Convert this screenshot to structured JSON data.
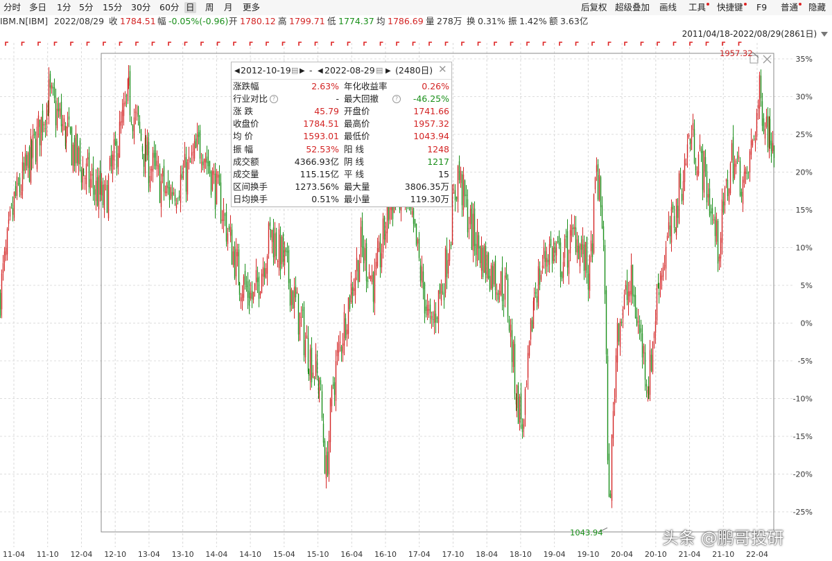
{
  "toolbar": {
    "periods": [
      "分时",
      "多日",
      "1分",
      "5分",
      "15分",
      "30分",
      "60分",
      "日",
      "周",
      "月",
      "更多"
    ],
    "active_period": "日",
    "tools": [
      "后复权",
      "超级叠加",
      "画线",
      "工具",
      "快捷键",
      "F9",
      "普通",
      "隐藏"
    ]
  },
  "quote": {
    "symbol": "IBM.N[IBM]",
    "date": "2022/08/29",
    "close_label": "收",
    "close": "1784.51",
    "change_label": "幅",
    "change": "-0.05%(-0.96)",
    "open_label": "开",
    "open": "1780.12",
    "high_label": "高",
    "high": "1799.71",
    "low_label": "低",
    "low": "1774.37",
    "avg_label": "均",
    "avg": "1786.69",
    "vol_label": "量",
    "vol": "278万",
    "turnover_label": "换",
    "turnover": "0.31%",
    "amp_label": "振",
    "amp": "1.42%",
    "amount_label": "额",
    "amount": "3.63亿"
  },
  "range_label": "2011/04/18-2022/08/29(2861日)",
  "stats_panel": {
    "start_date": "2012-10-19",
    "dash": "-",
    "end_date": "2022-08-29",
    "days": "(2480日)",
    "rows": [
      {
        "l1": "涨跌幅",
        "v1": "2.63%",
        "c1": "red",
        "l2": "年化收益率",
        "v2": "0.26%",
        "c2": "red"
      },
      {
        "l1": "行业对比",
        "v1": "-",
        "c1": "dark",
        "l2": "最大回撤",
        "v2": "-46.25%",
        "c2": "green"
      },
      {
        "l1": "涨    跌",
        "v1": "45.79",
        "c1": "red",
        "l2": "开盘价",
        "v2": "1741.66",
        "c2": "red"
      },
      {
        "l1": "收盘价",
        "v1": "1784.51",
        "c1": "red",
        "l2": "最高价",
        "v2": "1957.32",
        "c2": "red"
      },
      {
        "l1": "均    价",
        "v1": "1593.01",
        "c1": "red",
        "l2": "最低价",
        "v2": "1043.94",
        "c2": "red"
      },
      {
        "l1": "振    幅",
        "v1": "52.53%",
        "c1": "red",
        "l2": "阳    线",
        "v2": "1248",
        "c2": "red"
      },
      {
        "l1": "成交额",
        "v1": "4366.93亿",
        "c1": "dark",
        "l2": "阴    线",
        "v2": "1217",
        "c2": "green"
      },
      {
        "l1": "成交量",
        "v1": "115.15亿",
        "c1": "dark",
        "l2": "平    线",
        "v2": "15",
        "c2": "dark"
      },
      {
        "l1": "区间换手",
        "v1": "1273.56%",
        "c1": "dark",
        "l2": "最大量",
        "v2": "3806.35万",
        "c2": "dark"
      },
      {
        "l1": "日均换手",
        "v1": "0.51%",
        "c1": "dark",
        "l2": "最小量",
        "v2": "119.30万",
        "c2": "dark"
      }
    ]
  },
  "chart_data": {
    "type": "candlestick",
    "x_ticks": [
      "11-04",
      "11-10",
      "12-04",
      "12-10",
      "13-04",
      "13-10",
      "14-04",
      "14-10",
      "15-04",
      "15-10",
      "16-04",
      "16-10",
      "17-04",
      "17-10",
      "18-04",
      "18-10",
      "19-04",
      "19-10",
      "20-04",
      "20-10",
      "21-04",
      "21-10",
      "22-04"
    ],
    "y_ticks": [
      "35%",
      "30%",
      "25%",
      "20%",
      "15%",
      "10%",
      "5%",
      "0%",
      "-5%",
      "-10%",
      "-15%",
      "-20%",
      "-25%"
    ],
    "ylim": [
      -27,
      36
    ],
    "max_label": "1957.32",
    "min_label": "1043.94",
    "up_color": "#d32424",
    "down_color": "#1a8f1a",
    "anchors": [
      [
        0,
        4
      ],
      [
        20,
        16
      ],
      [
        45,
        22
      ],
      [
        70,
        30
      ],
      [
        95,
        25
      ],
      [
        120,
        20
      ],
      [
        150,
        16
      ],
      [
        185,
        30
      ],
      [
        210,
        22
      ],
      [
        240,
        17
      ],
      [
        270,
        20
      ],
      [
        290,
        24
      ],
      [
        320,
        15
      ],
      [
        345,
        6
      ],
      [
        365,
        3
      ],
      [
        390,
        12
      ],
      [
        410,
        8
      ],
      [
        430,
        1
      ],
      [
        445,
        -4
      ],
      [
        460,
        -8
      ],
      [
        470,
        -20
      ],
      [
        480,
        -8
      ],
      [
        500,
        2
      ],
      [
        520,
        10
      ],
      [
        540,
        5
      ],
      [
        560,
        15
      ],
      [
        580,
        18
      ],
      [
        600,
        10
      ],
      [
        620,
        -1
      ],
      [
        640,
        6
      ],
      [
        660,
        20
      ],
      [
        680,
        12
      ],
      [
        700,
        8
      ],
      [
        730,
        4
      ],
      [
        745,
        -10
      ],
      [
        755,
        -14
      ],
      [
        770,
        4
      ],
      [
        790,
        10
      ],
      [
        810,
        8
      ],
      [
        830,
        12
      ],
      [
        850,
        6
      ],
      [
        860,
        20
      ],
      [
        870,
        12
      ],
      [
        878,
        -25
      ],
      [
        890,
        0
      ],
      [
        910,
        5
      ],
      [
        935,
        -8
      ],
      [
        950,
        6
      ],
      [
        975,
        15
      ],
      [
        995,
        25
      ],
      [
        1015,
        20
      ],
      [
        1035,
        10
      ],
      [
        1055,
        22
      ],
      [
        1075,
        18
      ],
      [
        1095,
        30
      ],
      [
        1110,
        25
      ],
      [
        1118,
        24
      ]
    ]
  },
  "watermark": "头条 @鹏哥投研"
}
